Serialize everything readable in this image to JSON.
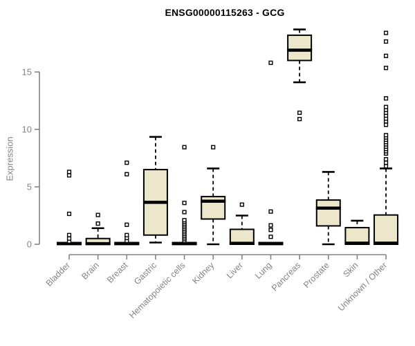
{
  "page": {
    "background": "#ffffff"
  },
  "chart_data": {
    "type": "boxplot",
    "title": "ENSG00000115263 - GCG",
    "xlabel": "",
    "ylabel": "Expression",
    "ylim": [
      0,
      19
    ],
    "y_ticks": [
      0,
      5,
      10,
      15
    ],
    "grid": false,
    "legend": "none",
    "colors": {
      "box_fill": "#ECE6CB",
      "box_stroke": "#000000",
      "median": "#000000",
      "axis": "#848484",
      "title": "#000000"
    },
    "categories": [
      "Bladder",
      "Brain",
      "Breast",
      "Gastric",
      "Hematopoietic cells",
      "Kidney",
      "Liver",
      "Lung",
      "Pancreas",
      "Prostate",
      "Skin",
      "Unknown / Other"
    ],
    "series": [
      {
        "label": "Bladder",
        "q1": 0,
        "median": 0.05,
        "q3": 0.15,
        "whisker_low": 0,
        "whisker_high": 0.15,
        "outliers": [
          0.25,
          0.5,
          0.8,
          2.65,
          6.0,
          6.3
        ]
      },
      {
        "label": "Brain",
        "q1": 0,
        "median": 0.05,
        "q3": 0.5,
        "whisker_low": 0,
        "whisker_high": 1.4,
        "outliers": [
          1.8,
          2.55
        ]
      },
      {
        "label": "Breast",
        "q1": 0,
        "median": 0.05,
        "q3": 0.15,
        "whisker_low": 0,
        "whisker_high": 0.15,
        "outliers": [
          0.3,
          0.55,
          0.8,
          1.7,
          6.1,
          7.1
        ]
      },
      {
        "label": "Gastric",
        "q1": 0.8,
        "median": 3.65,
        "q3": 6.5,
        "whisker_low": 0.15,
        "whisker_high": 9.35,
        "outliers": []
      },
      {
        "label": "Hematopoietic cells",
        "q1": 0,
        "median": 0.05,
        "q3": 0.15,
        "whisker_low": 0,
        "whisker_high": 0.15,
        "outliers": [
          0.3,
          0.45,
          0.6,
          0.75,
          0.9,
          1.05,
          1.2,
          1.35,
          1.5,
          1.65,
          1.8,
          1.95,
          2.1,
          2.8,
          3.6,
          8.45
        ]
      },
      {
        "label": "Kidney",
        "q1": 2.2,
        "median": 3.75,
        "q3": 4.15,
        "whisker_low": 0,
        "whisker_high": 6.6,
        "outliers": [
          8.45
        ]
      },
      {
        "label": "Liver",
        "q1": 0,
        "median": 0.08,
        "q3": 1.3,
        "whisker_low": 0,
        "whisker_high": 2.5,
        "outliers": [
          3.45
        ]
      },
      {
        "label": "Lung",
        "q1": 0,
        "median": 0.05,
        "q3": 0.15,
        "whisker_low": 0,
        "whisker_high": 0.15,
        "outliers": [
          0.65,
          1.25,
          1.65,
          2.85,
          15.8
        ]
      },
      {
        "label": "Pancreas",
        "q1": 16.0,
        "median": 16.9,
        "q3": 18.2,
        "whisker_low": 14.1,
        "whisker_high": 18.7,
        "outliers": [
          10.9,
          11.45
        ]
      },
      {
        "label": "Prostate",
        "q1": 1.6,
        "median": 3.15,
        "q3": 3.85,
        "whisker_low": 0,
        "whisker_high": 6.3,
        "outliers": []
      },
      {
        "label": "Skin",
        "q1": 0,
        "median": 0.1,
        "q3": 1.45,
        "whisker_low": 0,
        "whisker_high": 2.05,
        "outliers": []
      },
      {
        "label": "Unknown / Other",
        "q1": 0,
        "median": 0.1,
        "q3": 2.55,
        "whisker_low": 0,
        "whisker_high": 6.6,
        "outliers": [
          6.8,
          7.1,
          7.4,
          7.9,
          8.1,
          8.3,
          8.5,
          8.7,
          8.9,
          9.1,
          9.3,
          9.5,
          10.4,
          10.7,
          10.95,
          11.2,
          11.45,
          11.7,
          11.95,
          12.7,
          15.35,
          16.4,
          17.65,
          18.4
        ]
      }
    ]
  }
}
